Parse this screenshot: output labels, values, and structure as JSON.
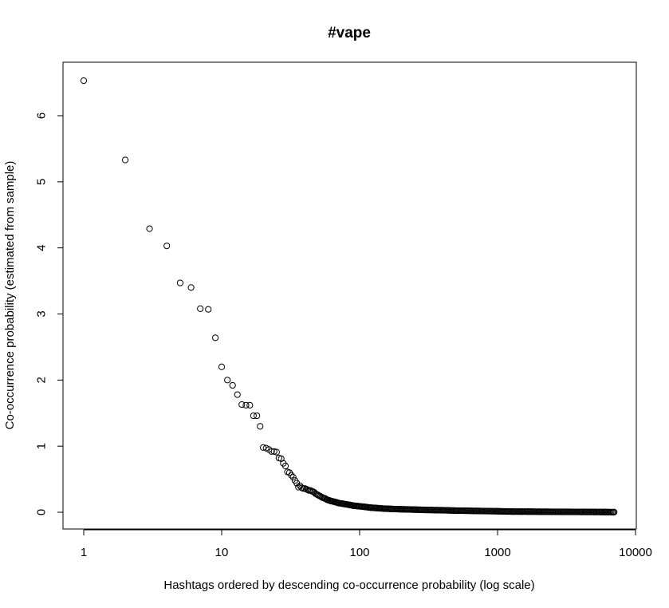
{
  "chart_data": {
    "type": "scatter",
    "title": "#vape",
    "xlabel": "Hashtags ordered by descending co-occurrence probability (log scale)",
    "ylabel": "Co-occurrence probability (estimated from sample)",
    "xscale": "log",
    "xlim": [
      1,
      7000
    ],
    "ylim": [
      0,
      6.53
    ],
    "xticks": [
      1,
      10,
      100,
      1000,
      10000
    ],
    "xtick_labels": [
      "1",
      "10",
      "100",
      "1000",
      "10000"
    ],
    "yticks": [
      0,
      1,
      2,
      3,
      4,
      5,
      6
    ],
    "ytick_labels": [
      "0",
      "1",
      "2",
      "3",
      "4",
      "5",
      "6"
    ],
    "grid": false,
    "legend": "none",
    "series": [
      {
        "marker": "open-circle",
        "x": [
          1,
          2,
          3,
          4,
          5,
          6,
          7,
          8,
          9,
          10,
          11,
          12,
          13,
          14,
          15,
          16,
          17,
          18,
          19,
          20,
          21,
          22,
          23,
          24,
          25,
          26,
          27,
          28,
          29,
          30,
          31,
          32,
          33,
          34,
          35,
          36,
          37,
          38,
          39,
          40,
          41,
          42,
          43,
          44,
          45,
          46,
          47,
          48,
          49,
          50,
          52,
          54,
          56,
          58,
          60,
          62,
          65,
          68,
          70,
          75,
          80,
          85,
          90,
          95,
          100,
          110,
          120,
          130,
          140,
          150,
          170,
          200,
          250,
          300,
          400,
          500,
          700,
          1000,
          1300,
          1500,
          2000,
          3000,
          4000,
          5000,
          6000,
          7000
        ],
        "y": [
          6.53,
          5.33,
          4.29,
          4.03,
          3.47,
          3.4,
          3.08,
          3.07,
          2.64,
          2.2,
          2.0,
          1.92,
          1.78,
          1.63,
          1.62,
          1.62,
          1.46,
          1.46,
          1.3,
          0.98,
          0.97,
          0.95,
          0.92,
          0.92,
          0.91,
          0.82,
          0.81,
          0.74,
          0.7,
          0.61,
          0.6,
          0.56,
          0.53,
          0.48,
          0.44,
          0.38,
          0.4,
          0.37,
          0.36,
          0.36,
          0.35,
          0.34,
          0.33,
          0.33,
          0.32,
          0.31,
          0.3,
          0.28,
          0.27,
          0.26,
          0.24,
          0.22,
          0.21,
          0.19,
          0.18,
          0.17,
          0.16,
          0.15,
          0.14,
          0.13,
          0.12,
          0.11,
          0.1,
          0.095,
          0.09,
          0.08,
          0.07,
          0.065,
          0.06,
          0.055,
          0.05,
          0.045,
          0.04,
          0.035,
          0.03,
          0.025,
          0.02,
          0.015,
          0.01,
          0.01,
          0.008,
          0.006,
          0.005,
          0.004,
          0.003,
          0.002
        ]
      }
    ]
  }
}
